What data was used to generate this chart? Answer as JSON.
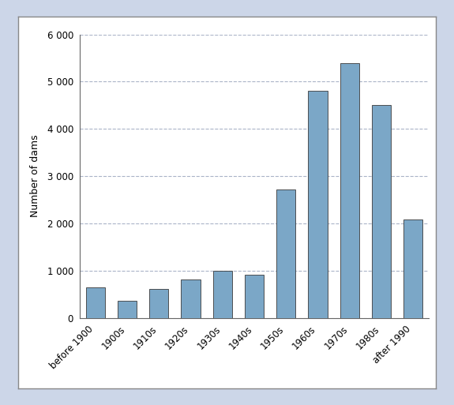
{
  "categories": [
    "before 1900",
    "1900s",
    "1910s",
    "1920s",
    "1930s",
    "1940s",
    "1950s",
    "1960s",
    "1970s",
    "1980s",
    "after 1990"
  ],
  "values": [
    640,
    370,
    620,
    820,
    1000,
    920,
    2720,
    4800,
    5400,
    4500,
    2080
  ],
  "bar_color": "#7BA7C7",
  "bar_edgecolor": "#3a3a3a",
  "ylabel": "Number of dams",
  "ylim": [
    0,
    6000
  ],
  "yticks": [
    0,
    1000,
    2000,
    3000,
    4000,
    5000,
    6000
  ],
  "ytick_labels": [
    "0",
    "1 000",
    "2 000",
    "3 000",
    "4 000",
    "5 000",
    "6 000"
  ],
  "grid_color": "#aab4c8",
  "grid_linestyle": "--",
  "plot_bg_color": "#ffffff",
  "outer_bg_color": "#ccd6e8",
  "inner_frame_color": "#ffffff",
  "inner_frame_border": "#888888",
  "ylabel_fontsize": 9,
  "tick_fontsize": 8.5,
  "bar_width": 0.6
}
